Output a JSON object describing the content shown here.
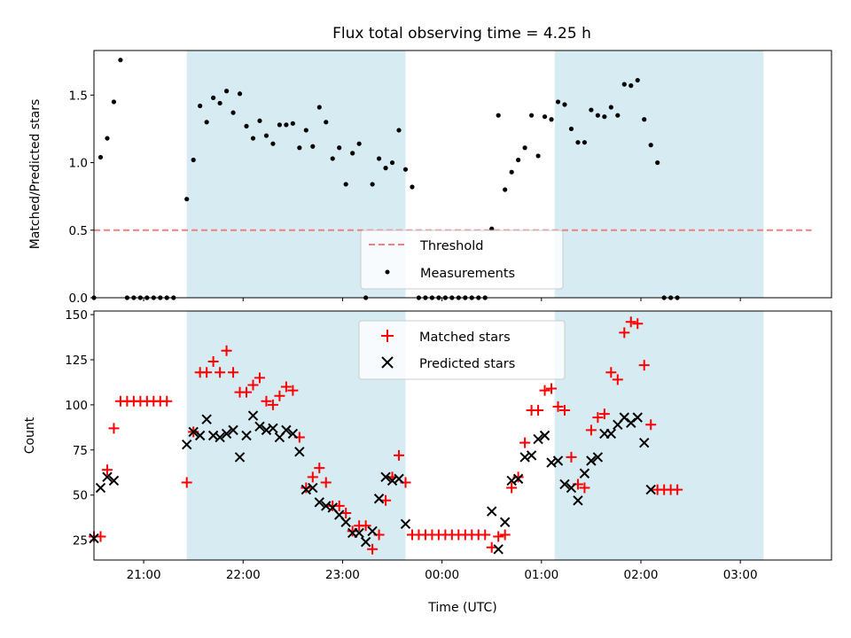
{
  "title": "Flux total observing time = 4.25 h",
  "colors": {
    "shade": "#add8e6",
    "threshold": "#f08080",
    "measurements": "#000000",
    "matched": "#ff0000",
    "predicted": "#000000"
  },
  "chart_data": [
    {
      "type": "scatter",
      "panel": "top",
      "ylabel": "Matched/Predicted stars",
      "ylim": [
        0,
        1.83
      ],
      "yticks": [
        0.0,
        0.5,
        1.0,
        1.5
      ],
      "xlim": [
        "20:30",
        "03:55"
      ],
      "legend": {
        "placement": "lower-center",
        "entries": [
          "Threshold",
          "Measurements"
        ]
      },
      "threshold": {
        "name": "Threshold",
        "value": 0.5,
        "x_from": "20:30",
        "x_to": "03:43"
      },
      "shaded_ranges": [
        [
          "21:26",
          "23:38"
        ],
        [
          "01:08",
          "03:14"
        ]
      ],
      "series": [
        {
          "name": "Measurements",
          "points": [
            [
              "20:30",
              0
            ],
            [
              "20:34",
              1.04
            ],
            [
              "20:38",
              1.18
            ],
            [
              "20:42",
              1.45
            ],
            [
              "20:46",
              1.76
            ],
            [
              "20:50",
              0
            ],
            [
              "20:54",
              0
            ],
            [
              "20:58",
              0
            ],
            [
              "21:02",
              0
            ],
            [
              "21:06",
              0
            ],
            [
              "21:10",
              0
            ],
            [
              "21:14",
              0
            ],
            [
              "21:18",
              0
            ],
            [
              "21:26",
              0.73
            ],
            [
              "21:30",
              1.02
            ],
            [
              "21:34",
              1.42
            ],
            [
              "21:38",
              1.3
            ],
            [
              "21:42",
              1.48
            ],
            [
              "21:46",
              1.44
            ],
            [
              "21:50",
              1.53
            ],
            [
              "21:54",
              1.37
            ],
            [
              "21:58",
              1.51
            ],
            [
              "22:02",
              1.27
            ],
            [
              "22:06",
              1.18
            ],
            [
              "22:10",
              1.31
            ],
            [
              "22:14",
              1.2
            ],
            [
              "22:18",
              1.14
            ],
            [
              "22:22",
              1.28
            ],
            [
              "22:26",
              1.28
            ],
            [
              "22:30",
              1.29
            ],
            [
              "22:34",
              1.11
            ],
            [
              "22:38",
              1.24
            ],
            [
              "22:42",
              1.12
            ],
            [
              "22:46",
              1.41
            ],
            [
              "22:50",
              1.3
            ],
            [
              "22:54",
              1.03
            ],
            [
              "22:58",
              1.11
            ],
            [
              "23:02",
              0.84
            ],
            [
              "23:06",
              1.07
            ],
            [
              "23:10",
              1.14
            ],
            [
              "23:14",
              0
            ],
            [
              "23:18",
              0.84
            ],
            [
              "23:22",
              1.03
            ],
            [
              "23:26",
              0.96
            ],
            [
              "23:30",
              1.0
            ],
            [
              "23:34",
              1.24
            ],
            [
              "23:38",
              0.95
            ],
            [
              "23:42",
              0.82
            ],
            [
              "23:46",
              0
            ],
            [
              "23:50",
              0
            ],
            [
              "23:54",
              0
            ],
            [
              "23:58",
              0
            ],
            [
              "00:02",
              0
            ],
            [
              "00:06",
              0
            ],
            [
              "00:10",
              0
            ],
            [
              "00:14",
              0
            ],
            [
              "00:18",
              0
            ],
            [
              "00:22",
              0
            ],
            [
              "00:26",
              0
            ],
            [
              "00:30",
              0.51
            ],
            [
              "00:34",
              1.35
            ],
            [
              "00:38",
              0.8
            ],
            [
              "00:42",
              0.93
            ],
            [
              "00:46",
              1.02
            ],
            [
              "00:50",
              1.11
            ],
            [
              "00:54",
              1.35
            ],
            [
              "00:58",
              1.05
            ],
            [
              "01:02",
              1.34
            ],
            [
              "01:06",
              1.32
            ],
            [
              "01:10",
              1.45
            ],
            [
              "01:14",
              1.43
            ],
            [
              "01:18",
              1.25
            ],
            [
              "01:22",
              1.15
            ],
            [
              "01:26",
              1.15
            ],
            [
              "01:30",
              1.39
            ],
            [
              "01:34",
              1.35
            ],
            [
              "01:38",
              1.34
            ],
            [
              "01:42",
              1.41
            ],
            [
              "01:46",
              1.35
            ],
            [
              "01:50",
              1.58
            ],
            [
              "01:54",
              1.57
            ],
            [
              "01:58",
              1.61
            ],
            [
              "02:02",
              1.32
            ],
            [
              "02:06",
              1.13
            ],
            [
              "02:10",
              1.0
            ],
            [
              "02:14",
              0
            ],
            [
              "02:18",
              0
            ],
            [
              "02:22",
              0
            ]
          ]
        }
      ]
    },
    {
      "type": "scatter",
      "panel": "bottom",
      "ylabel": "Count",
      "xlabel": "Time (UTC)",
      "ylim": [
        14,
        152
      ],
      "yticks": [
        25,
        50,
        75,
        100,
        125,
        150
      ],
      "xlim": [
        "20:30",
        "03:55"
      ],
      "xticks": [
        "21:00",
        "22:00",
        "23:00",
        "00:00",
        "01:00",
        "02:00",
        "03:00"
      ],
      "legend": {
        "placement": "top-center",
        "entries": [
          "Matched stars",
          "Predicted stars"
        ]
      },
      "shaded_ranges": [
        [
          "21:26",
          "23:38"
        ],
        [
          "01:08",
          "03:14"
        ]
      ],
      "series": [
        {
          "name": "Matched stars",
          "points": [
            [
              "20:30",
              27
            ],
            [
              "20:34",
              27
            ],
            [
              "20:38",
              64
            ],
            [
              "20:42",
              87
            ],
            [
              "20:46",
              102
            ],
            [
              "20:50",
              102
            ],
            [
              "20:54",
              102
            ],
            [
              "20:58",
              102
            ],
            [
              "21:02",
              102
            ],
            [
              "21:06",
              102
            ],
            [
              "21:10",
              102
            ],
            [
              "21:14",
              102
            ],
            [
              "21:26",
              57
            ],
            [
              "21:30",
              85
            ],
            [
              "21:34",
              118
            ],
            [
              "21:38",
              118
            ],
            [
              "21:42",
              124
            ],
            [
              "21:46",
              118
            ],
            [
              "21:50",
              130
            ],
            [
              "21:54",
              118
            ],
            [
              "21:58",
              107
            ],
            [
              "22:02",
              107
            ],
            [
              "22:06",
              111
            ],
            [
              "22:10",
              115
            ],
            [
              "22:14",
              102
            ],
            [
              "22:18",
              100
            ],
            [
              "22:22",
              105
            ],
            [
              "22:26",
              110
            ],
            [
              "22:30",
              108
            ],
            [
              "22:34",
              82
            ],
            [
              "22:38",
              54
            ],
            [
              "22:42",
              60
            ],
            [
              "22:46",
              65
            ],
            [
              "22:50",
              57
            ],
            [
              "22:54",
              44
            ],
            [
              "22:58",
              44
            ],
            [
              "23:02",
              40
            ],
            [
              "23:06",
              30
            ],
            [
              "23:10",
              33
            ],
            [
              "23:14",
              33
            ],
            [
              "23:18",
              20
            ],
            [
              "23:22",
              28
            ],
            [
              "23:26",
              47
            ],
            [
              "23:30",
              60
            ],
            [
              "23:34",
              72
            ],
            [
              "23:38",
              57
            ],
            [
              "23:42",
              28
            ],
            [
              "23:46",
              28
            ],
            [
              "23:50",
              28
            ],
            [
              "23:54",
              28
            ],
            [
              "23:58",
              28
            ],
            [
              "00:02",
              28
            ],
            [
              "00:06",
              28
            ],
            [
              "00:10",
              28
            ],
            [
              "00:14",
              28
            ],
            [
              "00:18",
              28
            ],
            [
              "00:22",
              28
            ],
            [
              "00:26",
              28
            ],
            [
              "00:30",
              21
            ],
            [
              "00:34",
              27
            ],
            [
              "00:38",
              28
            ],
            [
              "00:42",
              54
            ],
            [
              "00:46",
              60
            ],
            [
              "00:50",
              79
            ],
            [
              "00:54",
              97
            ],
            [
              "00:58",
              97
            ],
            [
              "01:02",
              108
            ],
            [
              "01:06",
              109
            ],
            [
              "01:10",
              99
            ],
            [
              "01:14",
              97
            ],
            [
              "01:18",
              71
            ],
            [
              "01:22",
              56
            ],
            [
              "01:26",
              54
            ],
            [
              "01:30",
              86
            ],
            [
              "01:34",
              93
            ],
            [
              "01:38",
              95
            ],
            [
              "01:42",
              118
            ],
            [
              "01:46",
              114
            ],
            [
              "01:50",
              140
            ],
            [
              "01:54",
              146
            ],
            [
              "01:58",
              145
            ],
            [
              "02:02",
              122
            ],
            [
              "02:06",
              89
            ],
            [
              "02:10",
              53
            ],
            [
              "02:14",
              53
            ],
            [
              "02:18",
              53
            ],
            [
              "02:22",
              53
            ]
          ]
        },
        {
          "name": "Predicted stars",
          "points": [
            [
              "20:30",
              26
            ],
            [
              "20:34",
              54
            ],
            [
              "20:38",
              60
            ],
            [
              "20:42",
              58
            ],
            [
              "21:26",
              78
            ],
            [
              "21:30",
              85
            ],
            [
              "21:34",
              83
            ],
            [
              "21:38",
              92
            ],
            [
              "21:42",
              83
            ],
            [
              "21:46",
              82
            ],
            [
              "21:50",
              84
            ],
            [
              "21:54",
              86
            ],
            [
              "21:58",
              71
            ],
            [
              "22:02",
              83
            ],
            [
              "22:06",
              94
            ],
            [
              "22:10",
              88
            ],
            [
              "22:14",
              86
            ],
            [
              "22:18",
              87
            ],
            [
              "22:22",
              82
            ],
            [
              "22:26",
              86
            ],
            [
              "22:30",
              84
            ],
            [
              "22:34",
              74
            ],
            [
              "22:38",
              53
            ],
            [
              "22:42",
              54
            ],
            [
              "22:46",
              46
            ],
            [
              "22:50",
              44
            ],
            [
              "22:54",
              43
            ],
            [
              "22:58",
              39
            ],
            [
              "23:02",
              35
            ],
            [
              "23:06",
              29
            ],
            [
              "23:10",
              29
            ],
            [
              "23:14",
              24
            ],
            [
              "23:18",
              30
            ],
            [
              "23:22",
              48
            ],
            [
              "23:26",
              60
            ],
            [
              "23:30",
              58
            ],
            [
              "23:34",
              59
            ],
            [
              "23:38",
              34
            ],
            [
              "00:30",
              41
            ],
            [
              "00:34",
              20
            ],
            [
              "00:38",
              35
            ],
            [
              "00:42",
              58
            ],
            [
              "00:46",
              59
            ],
            [
              "00:50",
              71
            ],
            [
              "00:54",
              72
            ],
            [
              "00:58",
              81
            ],
            [
              "01:02",
              83
            ],
            [
              "01:06",
              68
            ],
            [
              "01:10",
              69
            ],
            [
              "01:14",
              56
            ],
            [
              "01:18",
              54
            ],
            [
              "01:22",
              47
            ],
            [
              "01:26",
              62
            ],
            [
              "01:30",
              69
            ],
            [
              "01:34",
              71
            ],
            [
              "01:38",
              84
            ],
            [
              "01:42",
              84
            ],
            [
              "01:46",
              89
            ],
            [
              "01:50",
              93
            ],
            [
              "01:54",
              90
            ],
            [
              "01:58",
              93
            ],
            [
              "02:02",
              79
            ],
            [
              "02:06",
              53
            ]
          ]
        }
      ]
    }
  ]
}
